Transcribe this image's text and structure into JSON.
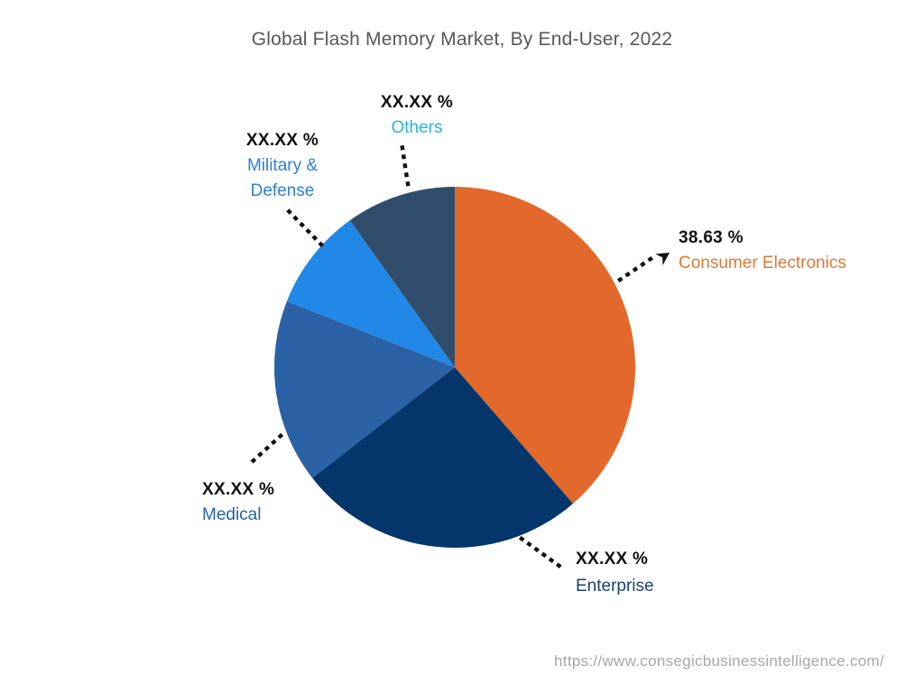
{
  "title": "Global Flash Memory Market, By End-User, 2022",
  "source_url": "https://www.consegicbusinessintelligence.com/",
  "chart_data": {
    "type": "pie",
    "title": "Global Flash Memory Market, By End-User, 2022",
    "start_angle_deg": 0,
    "direction": "clockwise",
    "legend_position": "callout-labels",
    "note": "All shares masked as XX.XX % except Consumer Electronics; other value_pct are estimated from slice angles",
    "segments": [
      {
        "id": "consumer-electronics",
        "label": "Consumer Electronics",
        "display_value": "38.63 %",
        "value_pct": 38.63,
        "color": "#E2692B",
        "label_color": "#DE7A36"
      },
      {
        "id": "enterprise",
        "label": "Enterprise",
        "display_value": "XX.XX %",
        "value_pct": 25.86,
        "color": "#04366B",
        "label_color": "#1F3F6E"
      },
      {
        "id": "medical",
        "label": "Medical",
        "display_value": "XX.XX %",
        "value_pct": 16.47,
        "color": "#2A62A5",
        "label_color": "#2361A7"
      },
      {
        "id": "military-defense",
        "label": "Military & Defense",
        "display_value": "XX.XX %",
        "value_pct": 9.17,
        "color": "#2288E8",
        "label_color": "#2D80D3"
      },
      {
        "id": "others",
        "label": "Others",
        "display_value": "XX.XX %",
        "value_pct": 9.87,
        "color": "#304E6C",
        "label_color": "#29B5D8"
      }
    ],
    "leader_line_color": "#111111"
  }
}
